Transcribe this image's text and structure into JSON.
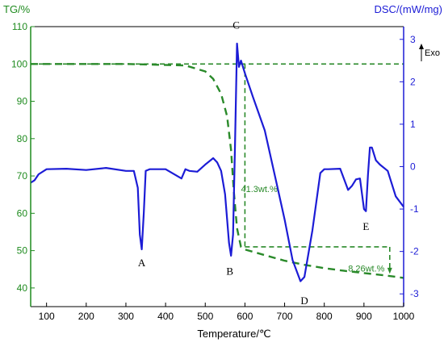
{
  "chart_data": {
    "type": "line",
    "xlabel": "Temperature/℃",
    "ylabel_left": "TG/%",
    "ylabel_right": "DSC/(mW/mg)",
    "exo_label": "Exo",
    "xlim": [
      60,
      1000
    ],
    "ylim_left": [
      35,
      110
    ],
    "ylim_right": [
      -3.3,
      3.3
    ],
    "x_ticks": [
      100,
      200,
      300,
      400,
      500,
      600,
      700,
      800,
      900,
      1000
    ],
    "y_left_ticks": [
      40,
      50,
      60,
      70,
      80,
      90,
      100,
      110
    ],
    "y_right_ticks": [
      -3,
      -2,
      -1,
      0,
      1,
      2,
      3
    ],
    "colors": {
      "tg": "#2a8a2a",
      "dsc": "#1c1cd6",
      "left_axis": "#1f8b1f",
      "right_axis": "#1c1cd6"
    },
    "series": [
      {
        "axis": "left",
        "style": "dashed",
        "x": [
          60,
          300,
          450,
          500,
          520,
          540,
          555,
          565,
          572,
          580,
          590,
          600,
          650,
          700,
          750,
          800,
          850,
          900,
          950,
          1000
        ],
        "y": [
          100,
          100,
          99.6,
          98,
          96,
          92,
          86,
          77,
          66,
          56,
          51,
          50.3,
          48.8,
          47.3,
          46.2,
          45.3,
          44.6,
          44,
          43.4,
          42.7
        ]
      },
      {
        "axis": "right",
        "style": "solid",
        "x": [
          60,
          70,
          80,
          100,
          150,
          200,
          250,
          300,
          320,
          330,
          335,
          340,
          345,
          350,
          360,
          400,
          440,
          450,
          460,
          480,
          500,
          520,
          530,
          540,
          550,
          560,
          565,
          570,
          575,
          580,
          585,
          590,
          600,
          620,
          650,
          680,
          700,
          720,
          740,
          750,
          770,
          790,
          800,
          810,
          840,
          860,
          870,
          880,
          890,
          900,
          905,
          910,
          915,
          920,
          930,
          940,
          960,
          980,
          1000
        ],
        "y": [
          -0.38,
          -0.32,
          -0.18,
          -0.06,
          -0.05,
          -0.08,
          -0.03,
          -0.1,
          -0.1,
          -0.5,
          -1.6,
          -1.95,
          -1.1,
          -0.1,
          -0.06,
          -0.06,
          -0.28,
          -0.06,
          -0.1,
          -0.12,
          0.05,
          0.2,
          0.1,
          -0.1,
          -0.65,
          -1.8,
          -2.1,
          -1.6,
          0.5,
          2.9,
          2.35,
          2.5,
          2.2,
          1.65,
          0.85,
          -0.4,
          -1.25,
          -2.2,
          -2.7,
          -2.6,
          -1.5,
          -0.15,
          -0.06,
          -0.06,
          -0.05,
          -0.55,
          -0.45,
          -0.3,
          -0.28,
          -1.0,
          -1.05,
          -0.2,
          0.45,
          0.45,
          0.15,
          0.05,
          -0.1,
          -0.7,
          -0.95
        ]
      }
    ],
    "point_labels": [
      {
        "text": "A",
        "x": 340,
        "y": -2.25
      },
      {
        "text": "B",
        "x": 562,
        "y": -2.45
      },
      {
        "text": "C",
        "x": 578,
        "y": 3.35
      },
      {
        "text": "D",
        "x": 750,
        "y": -3.15
      },
      {
        "text": "E",
        "x": 905,
        "y": -1.4
      }
    ],
    "annotations": [
      {
        "text": "41.3wt.%",
        "x": 590,
        "y": -0.52,
        "axis": "right"
      },
      {
        "text": "8.26wt.%",
        "x": 860,
        "y": -2.4,
        "axis": "right"
      }
    ]
  }
}
